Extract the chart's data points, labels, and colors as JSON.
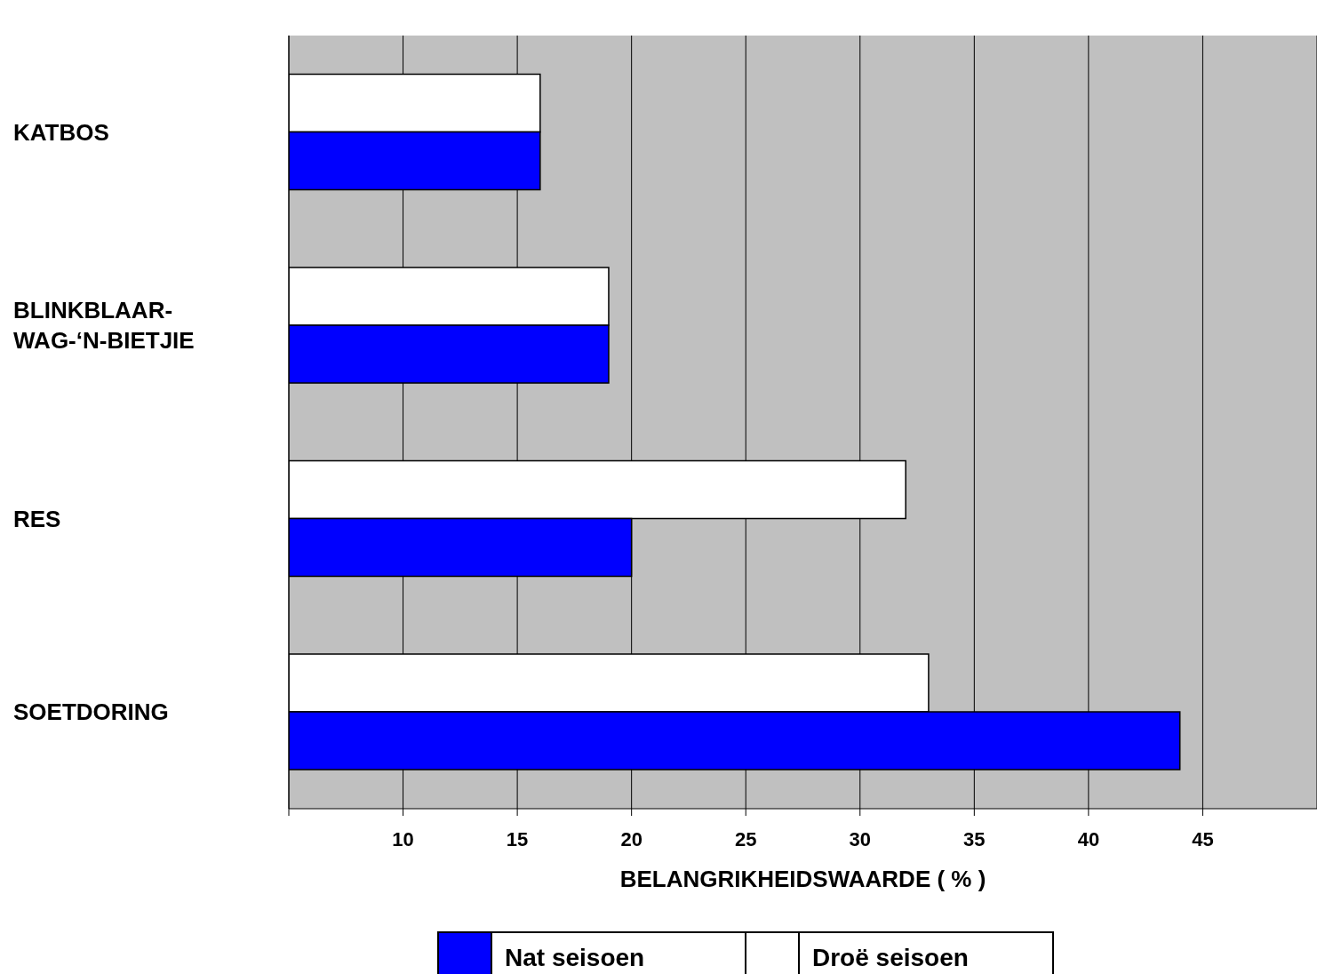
{
  "chart_data": {
    "type": "bar",
    "orientation": "horizontal",
    "xlabel": "BELANGRIKHEIDSWAARDE ( % )",
    "categories": [
      "KATBOS",
      "BLINKBLAAR-\nWAG-‘N-BIETJIE",
      "RES",
      "SOETDORING"
    ],
    "series": [
      {
        "name": "Nat seisoen",
        "color": "#0000ff",
        "values": [
          16,
          19,
          20,
          44
        ]
      },
      {
        "name": "Droë seisoen",
        "color": "#ffffff",
        "values": [
          16,
          19,
          32,
          33
        ]
      }
    ],
    "xlim": [
      5,
      50
    ],
    "xticks": [
      {
        "value": 5,
        "label": null
      },
      10,
      15,
      20,
      25,
      30,
      35,
      40,
      45
    ],
    "grid": "x",
    "legend": "bottom"
  }
}
